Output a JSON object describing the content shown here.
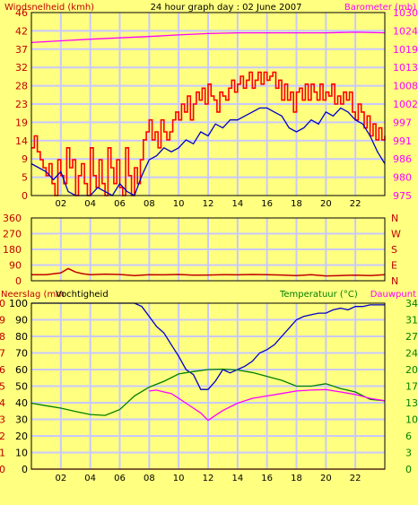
{
  "colors": {
    "background": "#ffff80",
    "plot_background": "#ffff80",
    "gridline": "#c8c8ff",
    "frame": "#000000",
    "wind_gust": "#ff0000",
    "wind_avg": "#0000c8",
    "barometer": "#ff00ff",
    "direction": "#c00000",
    "rain": "#ff0000",
    "humidity": "#0000c8",
    "temperature": "#008000",
    "dewpoint": "#ff00ff",
    "label_red": "#c00000",
    "label_magenta": "#ff00ff",
    "label_green": "#008000",
    "label_dark": "#000000"
  },
  "chart_data": [
    {
      "type": "line",
      "title": "24 hour graph day : 02 June 2007",
      "ylabel_left": "Windsnelheid (kmh)",
      "ylabel_right": "Barometer (mb)",
      "x_ticks": [
        "02",
        "04",
        "06",
        "08",
        "10",
        "12",
        "14",
        "16",
        "18",
        "20",
        "22"
      ],
      "y_left_ticks": [
        "0",
        "5",
        "9",
        "14",
        "19",
        "23",
        "28",
        "32",
        "37",
        "42",
        "46"
      ],
      "y_left_range": [
        0,
        46
      ],
      "y_right_ticks": [
        "975",
        "980",
        "986",
        "991",
        "997",
        "1002",
        "1008",
        "1013",
        "1019",
        "1024",
        "1030"
      ],
      "y_right_range": [
        975,
        1030
      ],
      "x_range": [
        0,
        24
      ],
      "grid": true,
      "series": [
        {
          "name": "Windsnelheid",
          "axis": "left",
          "style": "step",
          "x": [
            0,
            0.2,
            0.4,
            0.6,
            0.8,
            1.0,
            1.2,
            1.4,
            1.6,
            1.8,
            2.0,
            2.2,
            2.4,
            2.6,
            2.8,
            3.0,
            3.2,
            3.4,
            3.6,
            3.8,
            4.0,
            4.2,
            4.4,
            4.6,
            4.8,
            5.0,
            5.2,
            5.4,
            5.6,
            5.8,
            6.0,
            6.2,
            6.4,
            6.6,
            6.8,
            7.0,
            7.2,
            7.4,
            7.6,
            7.8,
            8.0,
            8.2,
            8.4,
            8.6,
            8.8,
            9.0,
            9.2,
            9.4,
            9.6,
            9.8,
            10.0,
            10.2,
            10.4,
            10.6,
            10.8,
            11.0,
            11.2,
            11.4,
            11.6,
            11.8,
            12.0,
            12.2,
            12.4,
            12.6,
            12.8,
            13.0,
            13.2,
            13.4,
            13.6,
            13.8,
            14.0,
            14.2,
            14.4,
            14.6,
            14.8,
            15.0,
            15.2,
            15.4,
            15.6,
            15.8,
            16.0,
            16.2,
            16.4,
            16.6,
            16.8,
            17.0,
            17.2,
            17.4,
            17.6,
            17.8,
            18.0,
            18.2,
            18.4,
            18.6,
            18.8,
            19.0,
            19.2,
            19.4,
            19.6,
            19.8,
            20.0,
            20.2,
            20.4,
            20.6,
            20.8,
            21.0,
            21.2,
            21.4,
            21.6,
            21.8,
            22.0,
            22.2,
            22.4,
            22.6,
            22.8,
            23.0,
            23.2,
            23.4,
            23.6,
            23.8,
            24.0
          ],
          "values": [
            12,
            15,
            11,
            9,
            7,
            5,
            8,
            3,
            0,
            9,
            5,
            3,
            12,
            7,
            9,
            0,
            5,
            8,
            3,
            0,
            12,
            5,
            2,
            9,
            3,
            0,
            12,
            7,
            3,
            9,
            2,
            0,
            12,
            5,
            0,
            7,
            3,
            9,
            14,
            16,
            19,
            14,
            16,
            12,
            19,
            16,
            14,
            16,
            19,
            21,
            19,
            23,
            21,
            25,
            19,
            23,
            26,
            24,
            27,
            23,
            28,
            25,
            24,
            21,
            26,
            25,
            24,
            27,
            29,
            26,
            28,
            30,
            27,
            29,
            31,
            27,
            29,
            31,
            28,
            31,
            29,
            30,
            31,
            27,
            29,
            24,
            28,
            24,
            26,
            21,
            26,
            27,
            24,
            28,
            24,
            28,
            26,
            24,
            28,
            24,
            26,
            25,
            28,
            23,
            25,
            23,
            26,
            24,
            26,
            21,
            19,
            23,
            21,
            17,
            20,
            15,
            18,
            14,
            17,
            14,
            15
          ]
        },
        {
          "name": "Gemiddelde wind",
          "axis": "left",
          "style": "line",
          "x": [
            0,
            0.5,
            1.0,
            1.5,
            2.0,
            2.5,
            3.0,
            3.5,
            4.0,
            4.5,
            5.0,
            5.5,
            6.0,
            6.5,
            7.0,
            7.5,
            8.0,
            8.5,
            9.0,
            9.5,
            10.0,
            10.5,
            11.0,
            11.5,
            12.0,
            12.5,
            13.0,
            13.5,
            14.0,
            14.5,
            15.0,
            15.5,
            16.0,
            16.5,
            17.0,
            17.5,
            18.0,
            18.5,
            19.0,
            19.5,
            20.0,
            20.5,
            21.0,
            21.5,
            22.0,
            22.5,
            23.0,
            23.5,
            24.0
          ],
          "values": [
            8,
            7,
            6,
            4,
            6,
            1,
            0,
            0,
            0,
            2,
            1,
            0,
            3,
            1,
            0,
            5,
            9,
            10,
            12,
            11,
            12,
            14,
            13,
            16,
            15,
            18,
            17,
            19,
            19,
            20,
            21,
            22,
            22,
            21,
            20,
            17,
            16,
            17,
            19,
            18,
            21,
            20,
            22,
            21,
            19,
            18,
            15,
            11,
            8
          ]
        },
        {
          "name": "Barometer",
          "axis": "right",
          "style": "line",
          "x": [
            0,
            2,
            4,
            6,
            8,
            10,
            12,
            14,
            16,
            18,
            20,
            22,
            24
          ],
          "values": [
            1021,
            1021.5,
            1022,
            1022.4,
            1022.8,
            1023.3,
            1023.7,
            1023.9,
            1023.9,
            1023.9,
            1023.9,
            1024.1,
            1023.9
          ]
        }
      ]
    },
    {
      "type": "line",
      "y_left_ticks": [
        "360",
        "270",
        "180",
        "90",
        "0"
      ],
      "y_left_range": [
        0,
        360
      ],
      "y_right_ticks": [
        "N",
        "W",
        "S",
        "E",
        "N"
      ],
      "x_range": [
        0,
        24
      ],
      "grid": true,
      "series": [
        {
          "name": "Windrichting",
          "x": [
            0,
            1,
            2,
            2.5,
            3,
            3.5,
            4,
            5,
            6,
            7,
            8,
            9,
            10,
            11,
            12,
            13,
            14,
            15,
            16,
            17,
            18,
            19,
            20,
            21,
            22,
            23,
            24
          ],
          "values": [
            35,
            35,
            45,
            70,
            50,
            40,
            35,
            38,
            36,
            30,
            35,
            34,
            36,
            32,
            33,
            35,
            34,
            36,
            35,
            33,
            30,
            35,
            28,
            30,
            32,
            30,
            35
          ]
        }
      ]
    },
    {
      "type": "line",
      "ylabel_left": "Neerslag (mm",
      "ylabel_left2": "Vochtigheid",
      "ylabel_right": "Temperatuur (°C)",
      "ylabel_right2": "Dauwpunt",
      "y_rain_ticks": [
        "10",
        "9",
        "8",
        "7",
        "6",
        "5",
        "4",
        "3",
        "2",
        "1",
        "0"
      ],
      "y_rain_range": [
        0,
        10
      ],
      "y_hum_ticks": [
        "100",
        "90",
        "80",
        "70",
        "60",
        "50",
        "40",
        "30",
        "20",
        "10",
        "0"
      ],
      "y_hum_range": [
        0,
        100
      ],
      "y_right_ticks": [
        "34",
        "31",
        "27",
        "24",
        "20",
        "17",
        "13",
        "10",
        "6",
        "3",
        "0"
      ],
      "y_right_range": [
        0,
        34
      ],
      "x_ticks": [
        "02",
        "04",
        "06",
        "08",
        "10",
        "12",
        "14",
        "16",
        "18",
        "20",
        "22"
      ],
      "x_range": [
        0,
        24
      ],
      "grid": true,
      "series": [
        {
          "name": "Neerslag",
          "axis": "rain",
          "x": [
            0,
            24
          ],
          "values": [
            0,
            0
          ]
        },
        {
          "name": "Vochtigheid",
          "axis": "hum",
          "x": [
            0,
            1,
            2,
            3,
            4,
            5,
            6,
            7,
            7.5,
            8,
            8.5,
            9,
            9.5,
            10,
            10.5,
            11,
            11.5,
            12,
            12.5,
            13,
            13.5,
            14,
            14.5,
            15,
            15.5,
            16,
            16.5,
            17,
            17.5,
            18,
            18.5,
            19,
            19.5,
            20,
            20.5,
            21,
            21.5,
            22,
            22.5,
            23,
            23.5,
            24
          ],
          "values": [
            100,
            100,
            100,
            100,
            100,
            100,
            100,
            100,
            98,
            92,
            86,
            82,
            75,
            68,
            60,
            57,
            48,
            48,
            53,
            60,
            58,
            60,
            62,
            65,
            70,
            72,
            75,
            80,
            85,
            90,
            92,
            93,
            94,
            94,
            96,
            97,
            96,
            98,
            98,
            99,
            99,
            99
          ]
        },
        {
          "name": "Temperatuur",
          "axis": "right",
          "x": [
            0,
            1,
            2,
            3,
            4,
            5,
            6,
            7,
            8,
            9,
            10,
            11,
            12,
            13,
            14,
            15,
            16,
            17,
            18,
            19,
            20,
            21,
            22,
            23,
            24
          ],
          "values": [
            13.5,
            13,
            12.5,
            11.8,
            11.2,
            11,
            12.2,
            15,
            16.8,
            18,
            19.5,
            20,
            20.4,
            20.5,
            20.3,
            19.8,
            19,
            18.2,
            17,
            17,
            17.5,
            16.5,
            15.8,
            14.3,
            14
          ]
        },
        {
          "name": "Dauwpunt",
          "axis": "right",
          "x": [
            8,
            8.5,
            9,
            9.5,
            10,
            10.5,
            11,
            11.5,
            12,
            12.5,
            13,
            14,
            15,
            16,
            17,
            18,
            19,
            20,
            21,
            22,
            23,
            24
          ],
          "values": [
            16,
            16.2,
            15.8,
            15.5,
            14.5,
            13.5,
            12.5,
            11.5,
            10,
            11,
            12,
            13.5,
            14.5,
            15,
            15.5,
            16,
            16.2,
            16.3,
            15.8,
            15.3,
            14.5,
            14
          ]
        }
      ]
    }
  ]
}
